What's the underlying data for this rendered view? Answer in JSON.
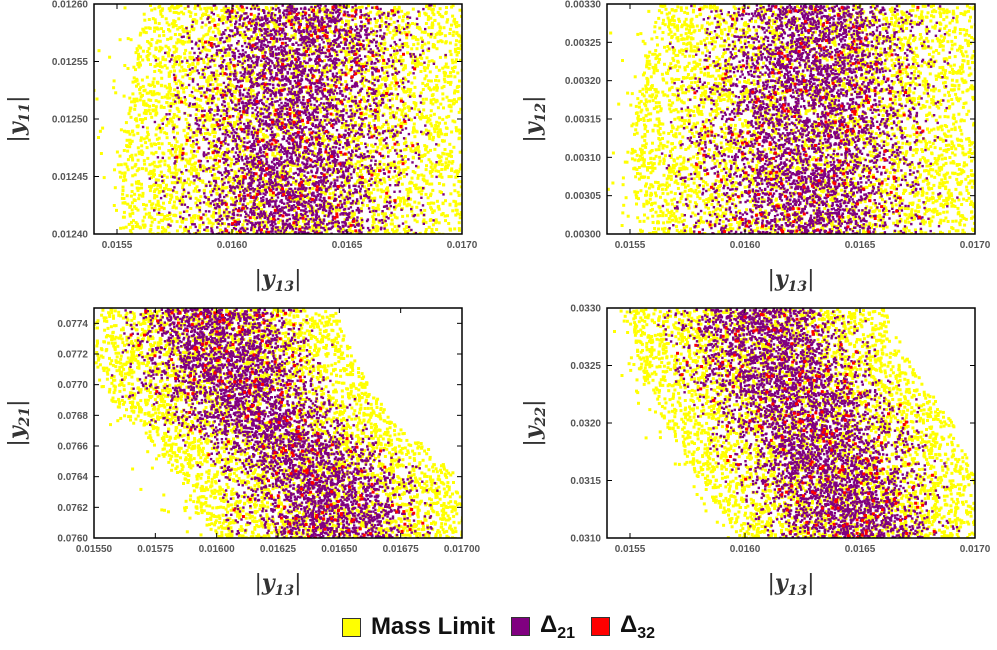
{
  "chart_data": [
    {
      "type": "scatter",
      "xlabel": "|y13|",
      "ylabel": "|y11|",
      "xlim": [
        0.0154,
        0.017
      ],
      "ylim": [
        0.0124,
        0.0126
      ],
      "xticks": [
        "0.0155",
        "0.0160",
        "0.0165",
        "0.0170"
      ],
      "xtick_values": [
        0.0155,
        0.016,
        0.0165,
        0.017
      ],
      "yticks": [
        "0.01240",
        "0.01245",
        "0.01250",
        "0.01255",
        "0.01260"
      ],
      "ytick_values": [
        0.0124,
        0.01245,
        0.0125,
        0.01255,
        0.0126
      ],
      "region": {
        "y_levels": [
          0.0124,
          0.01245,
          0.0125,
          0.01255,
          0.0126
        ],
        "left_edge": [
          0.01553,
          0.0155,
          0.01554,
          0.01556,
          0.01562
        ],
        "right_edge": [
          0.017,
          0.017,
          0.017,
          0.017,
          0.017
        ]
      }
    },
    {
      "type": "scatter",
      "xlabel": "|y13|",
      "ylabel": "|y12|",
      "xlim": [
        0.0154,
        0.017
      ],
      "ylim": [
        0.003,
        0.0033
      ],
      "xticks": [
        "0.0155",
        "0.0160",
        "0.0165",
        "0.0170"
      ],
      "xtick_values": [
        0.0155,
        0.016,
        0.0165,
        0.017
      ],
      "yticks": [
        "0.00300",
        "0.00305",
        "0.00310",
        "0.00315",
        "0.00320",
        "0.00325",
        "0.00330"
      ],
      "ytick_values": [
        0.003,
        0.00305,
        0.0031,
        0.00315,
        0.0032,
        0.00325,
        0.0033
      ],
      "region": {
        "y_levels": [
          0.003,
          0.0031,
          0.0032,
          0.0033
        ],
        "left_edge": [
          0.01553,
          0.0155,
          0.01554,
          0.01562
        ],
        "right_edge": [
          0.017,
          0.017,
          0.017,
          0.017
        ]
      }
    },
    {
      "type": "scatter",
      "xlabel": "|y13|",
      "ylabel": "|y21|",
      "xlim": [
        0.0155,
        0.017
      ],
      "ylim": [
        0.076,
        0.0775
      ],
      "xticks": [
        "0.01550",
        "0.01575",
        "0.01600",
        "0.01625",
        "0.01650",
        "0.01675",
        "0.01700"
      ],
      "xtick_values": [
        0.0155,
        0.01575,
        0.016,
        0.01625,
        0.0165,
        0.01675,
        0.017
      ],
      "yticks": [
        "0.0760",
        "0.0762",
        "0.0764",
        "0.0766",
        "0.0768",
        "0.0770",
        "0.0772",
        "0.0774"
      ],
      "ytick_values": [
        0.076,
        0.0762,
        0.0764,
        0.0766,
        0.0768,
        0.077,
        0.0772,
        0.0774
      ],
      "region": {
        "y_levels": [
          0.076,
          0.0762,
          0.0764,
          0.0766,
          0.0768,
          0.077,
          0.0772,
          0.0775
        ],
        "left_edge": [
          0.016,
          0.0159,
          0.01585,
          0.01575,
          0.01562,
          0.01552,
          0.0155,
          0.0155
        ],
        "right_edge": [
          0.017,
          0.017,
          0.01698,
          0.01685,
          0.0167,
          0.01662,
          0.01655,
          0.01648
        ]
      }
    },
    {
      "type": "scatter",
      "xlabel": "|y13|",
      "ylabel": "|y22|",
      "xlim": [
        0.0154,
        0.017
      ],
      "ylim": [
        0.031,
        0.033
      ],
      "xticks": [
        "0.0155",
        "0.0160",
        "0.0165",
        "0.0170"
      ],
      "xtick_values": [
        0.0155,
        0.016,
        0.0165,
        0.017
      ],
      "yticks": [
        "0.0310",
        "0.0315",
        "0.0320",
        "0.0325",
        "0.0330"
      ],
      "ytick_values": [
        0.031,
        0.0315,
        0.032,
        0.0325,
        0.033
      ],
      "region": {
        "y_levels": [
          0.031,
          0.0315,
          0.032,
          0.0325,
          0.033
        ],
        "left_edge": [
          0.01597,
          0.0158,
          0.01565,
          0.01553,
          0.0155
        ],
        "right_edge": [
          0.017,
          0.017,
          0.0169,
          0.01672,
          0.0166
        ]
      }
    }
  ],
  "legend": [
    {
      "label": "Mass Limit",
      "color": "#ffff00"
    },
    {
      "label": "Δ",
      "subscript": "21",
      "color": "#800080"
    },
    {
      "label": "Δ",
      "subscript": "32",
      "color": "#ff0000"
    }
  ],
  "point_density": 4200,
  "series_colors": {
    "mass_limit": "#ffff00",
    "delta21": "#800080",
    "delta32": "#ff0000"
  }
}
